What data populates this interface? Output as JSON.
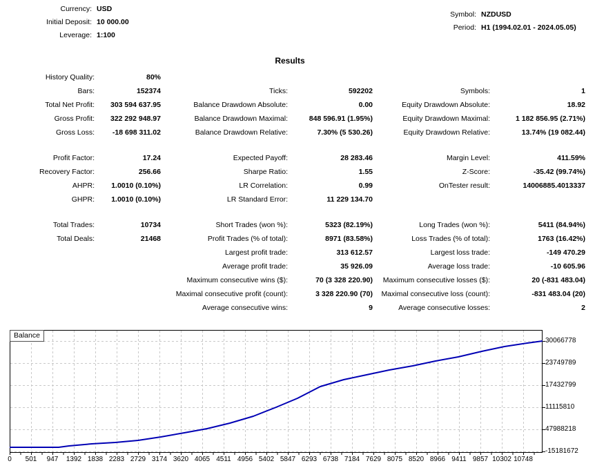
{
  "account": {
    "rows": [
      {
        "label": "Currency:",
        "value": "USD"
      },
      {
        "label": "Initial Deposit:",
        "value": "10 000.00"
      },
      {
        "label": "Leverage:",
        "value": "1:100"
      }
    ]
  },
  "instrument": {
    "rows": [
      {
        "label": "Symbol:",
        "value": "NZDUSD"
      },
      {
        "label": "Period:",
        "value": "H1 (1994.02.01 - 2024.05.05)"
      }
    ]
  },
  "results": {
    "title": "Results",
    "rows": [
      {
        "gap_before": false,
        "cells": [
          {
            "label": "History Quality:",
            "value": "80%"
          },
          null,
          null
        ]
      },
      {
        "gap_before": false,
        "cells": [
          {
            "label": "Bars:",
            "value": "152374"
          },
          {
            "label": "Ticks:",
            "value": "592202"
          },
          {
            "label": "Symbols:",
            "value": "1"
          }
        ]
      },
      {
        "gap_before": false,
        "cells": [
          {
            "label": "Total Net Profit:",
            "value": "303 594 637.95"
          },
          {
            "label": "Balance Drawdown Absolute:",
            "value": "0.00"
          },
          {
            "label": "Equity Drawdown Absolute:",
            "value": "18.92"
          }
        ]
      },
      {
        "gap_before": false,
        "cells": [
          {
            "label": "Gross Profit:",
            "value": "322 292 948.97"
          },
          {
            "label": "Balance Drawdown Maximal:",
            "value": "848 596.91 (1.95%)"
          },
          {
            "label": "Equity Drawdown Maximal:",
            "value": "1 182 856.95 (2.71%)"
          }
        ]
      },
      {
        "gap_before": false,
        "cells": [
          {
            "label": "Gross Loss:",
            "value": "-18 698 311.02"
          },
          {
            "label": "Balance Drawdown Relative:",
            "value": "7.30% (5 530.26)"
          },
          {
            "label": "Equity Drawdown Relative:",
            "value": "13.74% (19 082.44)"
          }
        ]
      },
      {
        "gap_before": true,
        "cells": [
          {
            "label": "Profit Factor:",
            "value": "17.24"
          },
          {
            "label": "Expected Payoff:",
            "value": "28 283.46"
          },
          {
            "label": "Margin Level:",
            "value": "411.59%"
          }
        ]
      },
      {
        "gap_before": false,
        "cells": [
          {
            "label": "Recovery Factor:",
            "value": "256.66"
          },
          {
            "label": "Sharpe Ratio:",
            "value": "1.55"
          },
          {
            "label": "Z-Score:",
            "value": "-35.42 (99.74%)"
          }
        ]
      },
      {
        "gap_before": false,
        "cells": [
          {
            "label": "AHPR:",
            "value": "1.0010 (0.10%)"
          },
          {
            "label": "LR Correlation:",
            "value": "0.99"
          },
          {
            "label": "OnTester result:",
            "value": "14006885.4013337"
          }
        ]
      },
      {
        "gap_before": false,
        "cells": [
          {
            "label": "GHPR:",
            "value": "1.0010 (0.10%)"
          },
          {
            "label": "LR Standard Error:",
            "value": "11 229 134.70"
          },
          null
        ]
      },
      {
        "gap_before": true,
        "cells": [
          {
            "label": "Total Trades:",
            "value": "10734"
          },
          {
            "label": "Short Trades (won %):",
            "value": "5323 (82.19%)"
          },
          {
            "label": "Long Trades (won %):",
            "value": "5411 (84.94%)"
          }
        ]
      },
      {
        "gap_before": false,
        "cells": [
          {
            "label": "Total Deals:",
            "value": "21468"
          },
          {
            "label": "Profit Trades (% of total):",
            "value": "8971 (83.58%)"
          },
          {
            "label": "Loss Trades (% of total):",
            "value": "1763 (16.42%)"
          }
        ]
      },
      {
        "gap_before": false,
        "cells": [
          null,
          {
            "label": "Largest profit trade:",
            "value": "313 612.57"
          },
          {
            "label": "Largest loss trade:",
            "value": "-149 470.29"
          }
        ]
      },
      {
        "gap_before": false,
        "cells": [
          null,
          {
            "label": "Average profit trade:",
            "value": "35 926.09"
          },
          {
            "label": "Average loss trade:",
            "value": "-10 605.96"
          }
        ]
      },
      {
        "gap_before": false,
        "cells": [
          null,
          {
            "label": "Maximum consecutive wins ($):",
            "value": "70 (3 328 220.90)"
          },
          {
            "label": "Maximum consecutive losses ($):",
            "value": "20 (-831 483.04)"
          }
        ]
      },
      {
        "gap_before": false,
        "cells": [
          null,
          {
            "label": "Maximal consecutive profit (count):",
            "value": "3 328 220.90 (70)"
          },
          {
            "label": "Maximal consecutive loss (count):",
            "value": "-831 483.04 (20)"
          }
        ]
      },
      {
        "gap_before": false,
        "cells": [
          null,
          {
            "label": "Average consecutive wins:",
            "value": "9"
          },
          {
            "label": "Average consecutive losses:",
            "value": "2"
          }
        ]
      }
    ]
  },
  "chart_data": {
    "type": "line",
    "title": "Balance",
    "legend": [
      "Balance"
    ],
    "legend_position": "top-left",
    "grid": true,
    "line_color": "#0000B4",
    "grid_color": "#c8c8c8",
    "xlabel": "",
    "ylabel": "",
    "x_ticks": [
      "0",
      "501",
      "947",
      "1392",
      "1838",
      "2283",
      "2729",
      "3174",
      "3620",
      "4065",
      "4511",
      "4956",
      "5402",
      "5847",
      "6293",
      "6738",
      "7184",
      "7629",
      "8075",
      "8520",
      "8966",
      "9411",
      "9857",
      "10302",
      "10748"
    ],
    "y_ticks": [
      "30066778",
      "23749789",
      "17432799",
      "11115810",
      "47988218",
      "-15181672"
    ],
    "series": [
      {
        "name": "Balance",
        "points": [
          {
            "x": 0,
            "y": 10000
          },
          {
            "x": 501,
            "y": 10000
          },
          {
            "x": 947,
            "y": 600000
          },
          {
            "x": 1392,
            "y": 4600000
          },
          {
            "x": 1838,
            "y": 10000000
          },
          {
            "x": 2283,
            "y": 14000000
          },
          {
            "x": 2729,
            "y": 19800000
          },
          {
            "x": 3174,
            "y": 28900000
          },
          {
            "x": 3620,
            "y": 39500000
          },
          {
            "x": 4065,
            "y": 51600000
          },
          {
            "x": 4511,
            "y": 65300000
          },
          {
            "x": 4956,
            "y": 82000000
          },
          {
            "x": 5402,
            "y": 103200000
          },
          {
            "x": 5847,
            "y": 127600000
          },
          {
            "x": 6293,
            "y": 158000000
          },
          {
            "x": 6738,
            "y": 182200000
          },
          {
            "x": 7184,
            "y": 195800000
          },
          {
            "x": 7629,
            "y": 209500000
          },
          {
            "x": 8075,
            "y": 223200000
          },
          {
            "x": 8520,
            "y": 233800000
          },
          {
            "x": 8966,
            "y": 247400000
          },
          {
            "x": 9411,
            "y": 258100000
          },
          {
            "x": 9857,
            "y": 273300000
          },
          {
            "x": 10302,
            "y": 286900000
          },
          {
            "x": 10748,
            "y": 296000000
          },
          {
            "x": 10900,
            "y": 303604638
          }
        ]
      }
    ],
    "render_curve": [
      [
        0,
        170
      ],
      [
        71,
        170
      ],
      [
        86,
        168
      ],
      [
        119,
        165
      ],
      [
        153,
        163
      ],
      [
        186,
        160
      ],
      [
        219,
        155
      ],
      [
        253,
        149
      ],
      [
        286,
        143
      ],
      [
        319,
        135
      ],
      [
        353,
        125
      ],
      [
        386,
        112
      ],
      [
        417,
        99
      ],
      [
        450,
        82
      ],
      [
        484,
        72
      ],
      [
        517,
        65
      ],
      [
        550,
        58
      ],
      [
        584,
        52
      ],
      [
        617,
        45
      ],
      [
        650,
        39
      ],
      [
        684,
        31
      ],
      [
        717,
        24
      ],
      [
        750,
        19
      ],
      [
        772,
        16
      ]
    ]
  }
}
